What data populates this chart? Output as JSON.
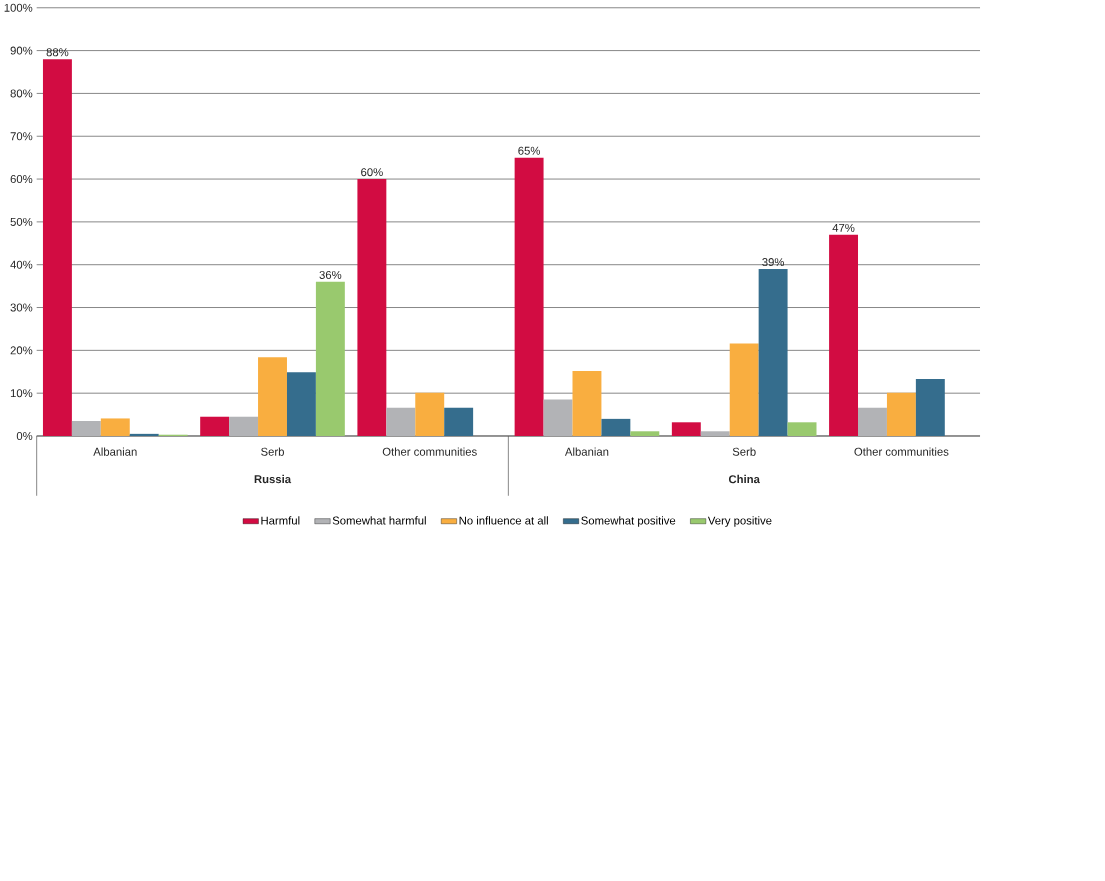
{
  "chart_data": {
    "type": "bar",
    "categories": [
      "Albanian",
      "Serb",
      "Other communities",
      "Albanian",
      "Serb",
      "Other communities"
    ],
    "annotations": [
      "Russia",
      "China"
    ],
    "series": [
      {
        "name": "Harmful",
        "color": "#d20c42",
        "values": [
          88,
          4.5,
          60,
          65,
          3.2,
          47
        ],
        "value_labels": [
          "88%",
          null,
          "60%",
          "65%",
          null,
          "47%"
        ]
      },
      {
        "name": "Somewhat harmful",
        "color": "#b2b3b6",
        "values": [
          3.5,
          4.5,
          6.6,
          8.5,
          1.1,
          6.6
        ]
      },
      {
        "name": "No influence at all",
        "color": "#f9ae40",
        "values": [
          4.1,
          18.4,
          10.1,
          15.2,
          21.6,
          10.1
        ]
      },
      {
        "name": "Somewhat positive",
        "color": "#356d8d",
        "values": [
          0.5,
          14.9,
          6.6,
          4.0,
          39,
          13.3
        ],
        "value_labels": [
          null,
          null,
          null,
          null,
          "39%",
          null
        ]
      },
      {
        "name": "Very positive",
        "color": "#99c96e",
        "values": [
          0.3,
          36,
          null,
          1.1,
          3.2,
          null
        ],
        "value_labels": [
          null,
          "36%",
          null,
          null,
          null,
          null
        ]
      }
    ],
    "ylim": [
      0,
      100
    ],
    "yticks": [
      {
        "value": 0,
        "label": "0%"
      },
      {
        "value": 10,
        "label": "10%"
      },
      {
        "value": 20,
        "label": "20%"
      },
      {
        "value": 30,
        "label": "30%"
      },
      {
        "value": 40,
        "label": "40%"
      },
      {
        "value": 50,
        "label": "50%"
      },
      {
        "value": 60,
        "label": "60%"
      },
      {
        "value": 70,
        "label": "70%"
      },
      {
        "value": 80,
        "label": "80%"
      },
      {
        "value": 90,
        "label": "90%"
      },
      {
        "value": 100,
        "label": "100%"
      }
    ],
    "grid": "y",
    "legend": "bottom"
  }
}
